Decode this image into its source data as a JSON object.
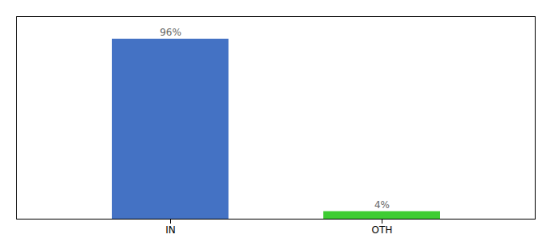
{
  "chart_data": {
    "type": "bar",
    "categories": [
      "IN",
      "OTH"
    ],
    "values": [
      96,
      4
    ],
    "value_labels": [
      "96%",
      "4%"
    ],
    "colors": [
      "#4472c4",
      "#3ecc32"
    ],
    "ylim": [
      0,
      108
    ],
    "data_labels": true,
    "tick_labels": "x"
  }
}
